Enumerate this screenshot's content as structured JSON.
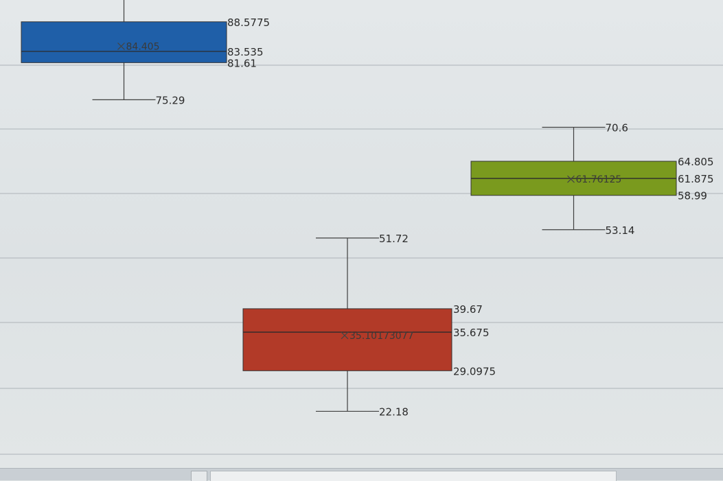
{
  "chart_data": {
    "type": "box",
    "ylim": [
      18,
      92
    ],
    "grid": true,
    "series": [
      {
        "color": "#1f5fa8",
        "min": 75.29,
        "q1": 81.61,
        "median": 83.535,
        "q3": 88.5775,
        "max": null,
        "mean": 84.405,
        "labels": {
          "min": "75.29",
          "q1": "81.61",
          "median": "83.535",
          "q3": "88.5775",
          "mean": "84.405"
        }
      },
      {
        "color": "#7a9a1e",
        "min": 53.14,
        "q1": 58.99,
        "median": 61.875,
        "q3": 64.805,
        "max": 70.6,
        "mean": 61.76125,
        "labels": {
          "min": "53.14",
          "q1": "58.99",
          "median": "61.875",
          "q3": "64.805",
          "max": "70.6",
          "mean": "61.76125"
        }
      },
      {
        "color": "#b23a28",
        "min": 22.18,
        "q1": 29.0975,
        "median": 35.675,
        "q3": 39.67,
        "max": 51.72,
        "mean": 35.10173077,
        "labels": {
          "min": "22.18",
          "q1": "29.0975",
          "median": "35.675",
          "q3": "39.67",
          "max": "51.72",
          "mean": "35.10173077"
        }
      }
    ]
  },
  "ui": {
    "sheet_nav_icon": "sheet-nav-icon"
  }
}
